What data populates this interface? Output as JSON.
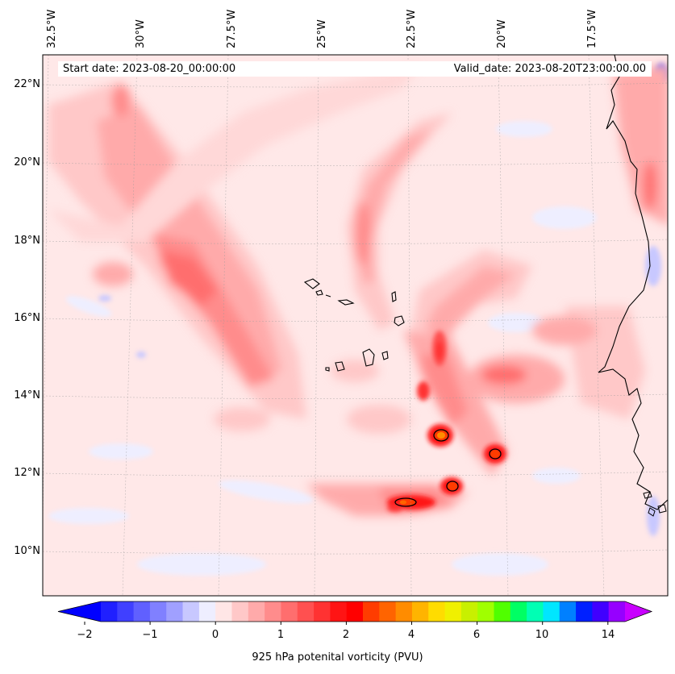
{
  "map": {
    "start_date": "Start date: 2023-08-20_00:00:00",
    "valid_date": "Valid_date: 2023-08-20T23:00:00.00",
    "longitude_labels": [
      "32.5°W",
      "30°W",
      "27.5°W",
      "25°W",
      "22.5°W",
      "20°W",
      "17.5°W"
    ],
    "latitude_labels": [
      "22°N",
      "20°N",
      "18°N",
      "16°N",
      "14°N",
      "12°N",
      "10°N"
    ],
    "extent": {
      "lon": [
        -32.6,
        -15.3
      ],
      "lat": [
        8.9,
        22.8
      ]
    },
    "variable": "925 hPa potential vorticity",
    "features": [
      "Cabo Verde islands",
      "West African coastline (Senegal, Gambia, Guinea-Bissau)"
    ]
  },
  "colorbar": {
    "title": "925 hPa potenital vorticity (PVU)",
    "tick_labels": [
      "−2",
      "−1",
      "0",
      "1",
      "2",
      "4",
      "6",
      "10",
      "14"
    ],
    "colors": [
      "#0000ff",
      "#2020ff",
      "#4040ff",
      "#6060ff",
      "#8080ff",
      "#a0a0ff",
      "#c8c8ff",
      "#eeeeff",
      "#ffe6e6",
      "#ffc8c8",
      "#ffaaaa",
      "#ff8c8c",
      "#ff6e6e",
      "#ff5050",
      "#ff3232",
      "#ff1414",
      "#ff0000",
      "#ff3c00",
      "#ff6400",
      "#ff8c00",
      "#ffb400",
      "#ffdc00",
      "#f0f000",
      "#c8f000",
      "#a0ff00",
      "#50ff00",
      "#00ff64",
      "#00ffb4",
      "#00e6ff",
      "#0080ff",
      "#0020ff",
      "#4000ff",
      "#9600ff",
      "#c800ff"
    ]
  }
}
